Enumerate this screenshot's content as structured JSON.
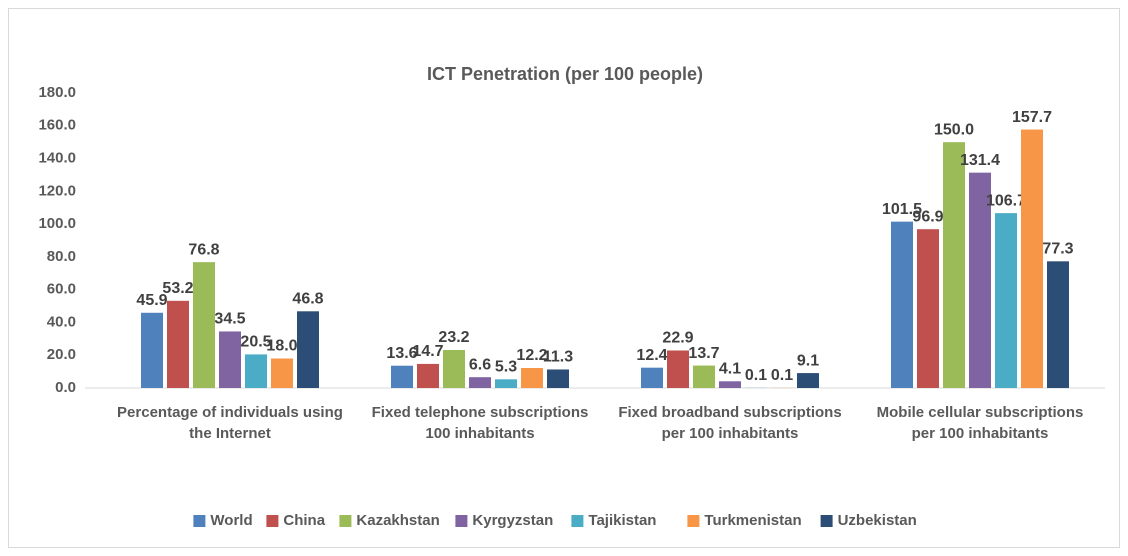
{
  "chart_data": {
    "type": "bar",
    "title": "ICT Penetration (per 100 people)",
    "categories": [
      "Percentage of individuals using the Internet",
      "Fixed telephone subscriptions 100 inhabitants",
      "Fixed broadband subscriptions per 100 inhabitants",
      "Mobile cellular subscriptions per 100 inhabitants"
    ],
    "series": [
      {
        "name": "World",
        "color": "#4f81bd",
        "values": [
          45.9,
          13.6,
          12.4,
          101.5
        ],
        "value_labels": [
          "45.9",
          "13.6",
          "12.4",
          "101.5"
        ]
      },
      {
        "name": "China",
        "color": "#c0504d",
        "values": [
          53.2,
          14.7,
          22.9,
          96.9
        ],
        "value_labels": [
          "53.2",
          "14.7",
          "22.9",
          "96.9"
        ]
      },
      {
        "name": "Kazakhstan",
        "color": "#9bbb59",
        "values": [
          76.8,
          23.2,
          13.7,
          150.0
        ],
        "value_labels": [
          "76.8",
          "23.2",
          "13.7",
          "150.0"
        ]
      },
      {
        "name": "Kyrgyzstan",
        "color": "#8064a2",
        "values": [
          34.5,
          6.6,
          4.1,
          131.4
        ],
        "value_labels": [
          "34.5",
          "6.6",
          "4.1",
          "131.4"
        ]
      },
      {
        "name": "Tajikistan",
        "color": "#4bacc6",
        "values": [
          20.5,
          5.3,
          0.1,
          106.7
        ],
        "value_labels": [
          "20.5",
          "5.3",
          "0.1",
          "106.7"
        ]
      },
      {
        "name": "Turkmenistan",
        "color": "#f79646",
        "values": [
          18.0,
          12.2,
          0.1,
          157.7
        ],
        "value_labels": [
          "18.0",
          "12.2",
          "0.1",
          "157.7"
        ]
      },
      {
        "name": "Uzbekistan",
        "color": "#2c4d75",
        "values": [
          46.8,
          11.3,
          9.1,
          77.3
        ],
        "value_labels": [
          "46.8",
          "11.3",
          "9.1",
          "77.3"
        ]
      }
    ],
    "ylim": [
      0,
      180
    ],
    "yticks": [
      {
        "value": 0,
        "label": "0.0"
      },
      {
        "value": 20,
        "label": "20.0"
      },
      {
        "value": 40,
        "label": "40.0"
      },
      {
        "value": 60,
        "label": "60.0"
      },
      {
        "value": 80,
        "label": "80.0"
      },
      {
        "value": 100,
        "label": "100.0"
      },
      {
        "value": 120,
        "label": "120.0"
      },
      {
        "value": 140,
        "label": "140.0"
      },
      {
        "value": 160,
        "label": "160.0"
      },
      {
        "value": 180,
        "label": "180.0"
      }
    ],
    "grid": false,
    "legend": "bottom"
  }
}
